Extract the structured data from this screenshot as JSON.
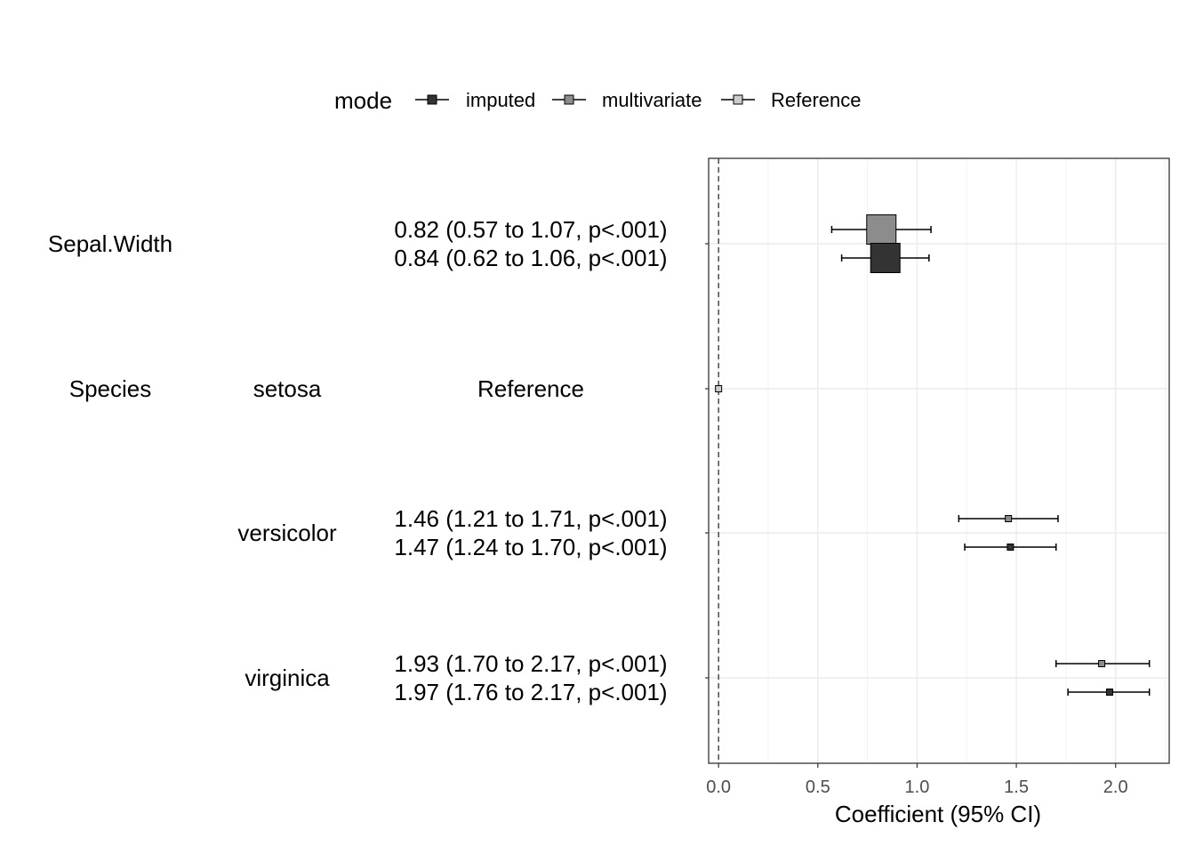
{
  "chart_data": {
    "type": "scatter",
    "legend": {
      "title": "mode",
      "placement": "top",
      "entries": [
        {
          "label": "imputed",
          "color": "#333333"
        },
        {
          "label": "multivariate",
          "color": "#8c8c8c"
        },
        {
          "label": "Reference",
          "color": "#cccccc"
        }
      ]
    },
    "xlabel": "Coefficient (95% CI)",
    "xlim": [
      -0.05,
      2.27
    ],
    "xticks": [
      "0.0",
      "0.5",
      "1.0",
      "1.5",
      "2.0"
    ],
    "xtick_values": [
      0.0,
      0.5,
      1.0,
      1.5,
      2.0
    ],
    "grid": true,
    "reference_line": 0,
    "table_rows": [
      {
        "variable": "Sepal.Width",
        "level": "",
        "estimates": [
          "0.82 (0.57 to 1.07, p<.001)",
          "0.84 (0.62 to 1.06, p<.001)"
        ]
      },
      {
        "variable": "Species",
        "level": "setosa",
        "estimates": [
          "Reference"
        ]
      },
      {
        "variable": "",
        "level": "versicolor",
        "estimates": [
          "1.46 (1.21 to 1.71, p<.001)",
          "1.47 (1.24 to 1.70, p<.001)"
        ]
      },
      {
        "variable": "",
        "level": "virginica",
        "estimates": [
          "1.93 (1.70 to 2.17, p<.001)",
          "1.97 (1.76 to 2.17, p<.001)"
        ]
      }
    ],
    "points": [
      {
        "row": 0,
        "mode": "multivariate",
        "estimate": 0.82,
        "low": 0.57,
        "high": 1.07,
        "weight": 1.0
      },
      {
        "row": 0,
        "mode": "imputed",
        "estimate": 0.84,
        "low": 0.62,
        "high": 1.06,
        "weight": 1.0
      },
      {
        "row": 1,
        "mode": "Reference",
        "estimate": 0.0,
        "low": 0.0,
        "high": 0.0,
        "weight": 0.0
      },
      {
        "row": 2,
        "mode": "multivariate",
        "estimate": 1.46,
        "low": 1.21,
        "high": 1.71,
        "weight": 0.0
      },
      {
        "row": 2,
        "mode": "imputed",
        "estimate": 1.47,
        "low": 1.24,
        "high": 1.7,
        "weight": 0.0
      },
      {
        "row": 3,
        "mode": "multivariate",
        "estimate": 1.93,
        "low": 1.7,
        "high": 2.17,
        "weight": 0.0
      },
      {
        "row": 3,
        "mode": "imputed",
        "estimate": 1.97,
        "low": 1.76,
        "high": 2.17,
        "weight": 0.0
      }
    ]
  }
}
